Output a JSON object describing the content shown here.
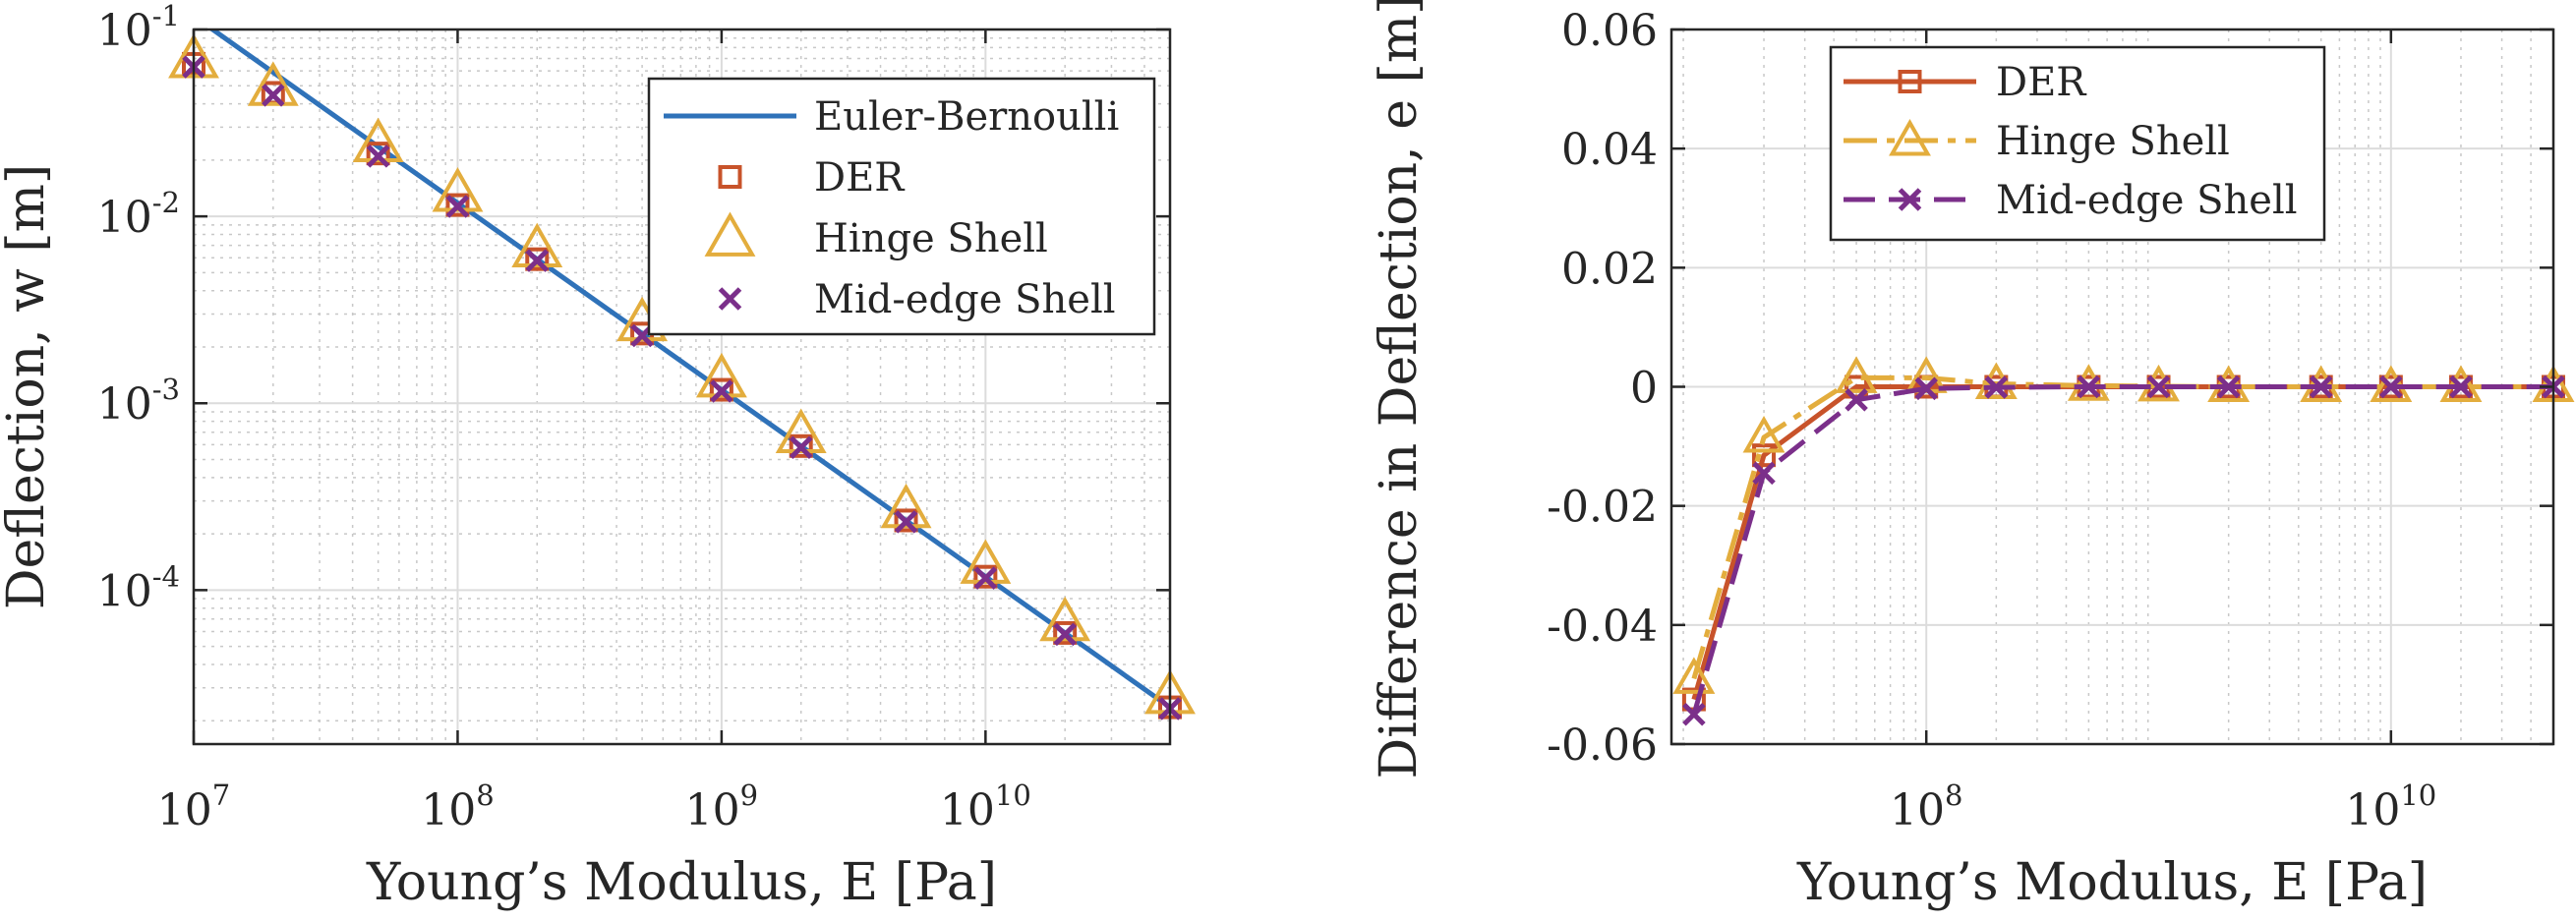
{
  "chart_data": [
    {
      "type": "line",
      "xlabel": "Young’s Modulus, E [Pa]",
      "ylabel": "Deflection, w [m]",
      "xscale": "log",
      "yscale": "log",
      "xlim": [
        10000000.0,
        50000000000.0
      ],
      "ylim": [
        1.5e-05,
        0.1
      ],
      "grid": true,
      "minor_grid": true,
      "legend_position": "top-right",
      "xticks": [
        {
          "value": 10000000.0,
          "base": "10",
          "exp": "7"
        },
        {
          "value": 100000000.0,
          "base": "10",
          "exp": "8"
        },
        {
          "value": 1000000000.0,
          "base": "10",
          "exp": "9"
        },
        {
          "value": 10000000000.0,
          "base": "10",
          "exp": "10"
        }
      ],
      "yticks": [
        {
          "value": 0.1,
          "base": "10",
          "exp": "-1"
        },
        {
          "value": 0.01,
          "base": "10",
          "exp": "-2"
        },
        {
          "value": 0.001,
          "base": "10",
          "exp": "-3"
        },
        {
          "value": 0.0001,
          "base": "10",
          "exp": "-4"
        }
      ],
      "x": [
        10000000.0,
        20000000.0,
        50000000.0,
        100000000.0,
        200000000.0,
        500000000.0,
        1000000000.0,
        2000000000.0,
        5000000000.0,
        10000000000.0,
        20000000000.0,
        50000000000.0
      ],
      "series": [
        {
          "name": "Euler-Bernoulli",
          "style": "line",
          "color": "#2f72b9",
          "values": [
            0.118,
            0.059,
            0.0236,
            0.0118,
            0.0059,
            0.00236,
            0.00118,
            0.00059,
            0.000236,
            0.000118,
            5.9e-05,
            2.36e-05
          ]
        },
        {
          "name": "DER",
          "style": "square",
          "color": "#c8532a",
          "values": [
            0.0655,
            0.0458,
            0.0217,
            0.0115,
            0.0059,
            0.00236,
            0.00118,
            0.00059,
            0.000236,
            0.000118,
            5.9e-05,
            2.36e-05
          ]
        },
        {
          "name": "Hinge Shell",
          "style": "triangle",
          "color": "#e3ad3d",
          "values": [
            0.069,
            0.049,
            0.0245,
            0.0133,
            0.0067,
            0.0027,
            0.00135,
            0.00068,
            0.00027,
            0.000136,
            6.7e-05,
            2.73e-05
          ]
        },
        {
          "name": "Mid-edge Shell",
          "style": "x",
          "color": "#7b2f8a",
          "values": [
            0.063,
            0.0445,
            0.021,
            0.0113,
            0.0058,
            0.0023,
            0.00116,
            0.00058,
            0.000232,
            0.000116,
            5.8e-05,
            2.32e-05
          ]
        }
      ]
    },
    {
      "type": "line",
      "xlabel": "Young’s Modulus, E [Pa]",
      "ylabel": "Difference in Deflection, e [m]",
      "xscale": "log",
      "yscale": "linear",
      "xlim": [
        8000000.0,
        50000000000.0
      ],
      "ylim": [
        -0.06,
        0.06
      ],
      "grid": true,
      "minor_grid": true,
      "legend_position": "top-center",
      "xticks": [
        {
          "value": 100000000.0,
          "base": "10",
          "exp": "8"
        },
        {
          "value": 10000000000.0,
          "base": "10",
          "exp": "10"
        }
      ],
      "yticks": [
        {
          "value": 0.06,
          "label": "0.06"
        },
        {
          "value": 0.04,
          "label": "0.04"
        },
        {
          "value": 0.02,
          "label": "0.02"
        },
        {
          "value": 0,
          "label": "0"
        },
        {
          "value": -0.02,
          "label": "-0.02"
        },
        {
          "value": -0.04,
          "label": "-0.04"
        },
        {
          "value": -0.06,
          "label": "-0.06"
        }
      ],
      "x": [
        10000000.0,
        20000000.0,
        50000000.0,
        100000000.0,
        200000000.0,
        500000000.0,
        1000000000.0,
        2000000000.0,
        5000000000.0,
        10000000000.0,
        20000000000.0,
        50000000000.0
      ],
      "series": [
        {
          "name": "DER",
          "style": "solid-square",
          "color": "#c8532a",
          "values": [
            -0.0525,
            -0.0115,
            0.0,
            0.0,
            0.0,
            0.0,
            0.0,
            0.0,
            0.0,
            0.0,
            0.0,
            0.0
          ]
        },
        {
          "name": "Hinge Shell",
          "style": "dashdot-triangle",
          "color": "#e3ad3d",
          "values": [
            -0.049,
            -0.0085,
            0.0015,
            0.0015,
            0.0005,
            0.0002,
            0.0001,
            0.0,
            0.0,
            0.0,
            0.0,
            0.0
          ]
        },
        {
          "name": "Mid-edge Shell",
          "style": "dash-x",
          "color": "#7b2f8a",
          "values": [
            -0.055,
            -0.0145,
            -0.0022,
            -0.0003,
            -0.0001,
            0.0,
            0.0,
            0.0,
            0.0,
            0.0,
            0.0,
            0.0
          ]
        }
      ]
    }
  ]
}
